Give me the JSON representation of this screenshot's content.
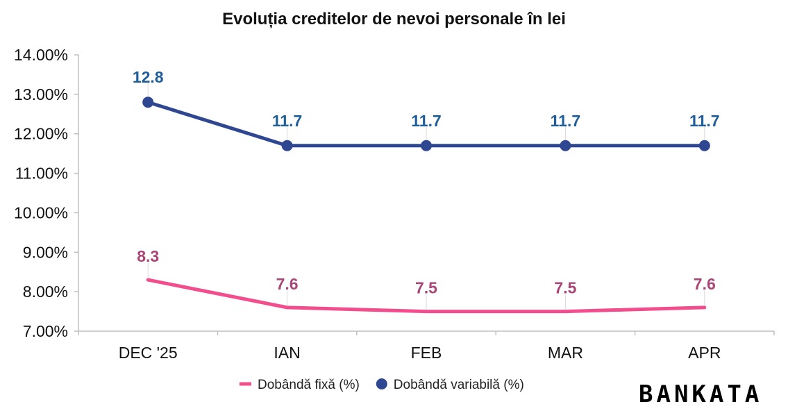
{
  "colors": {
    "fixed": "#f24d8c",
    "variable": "#2f4791",
    "fixed_label": "#a94577",
    "variable_label": "#1f5e99",
    "axis": "#bfbfbf",
    "leader": "#d9d9d9"
  },
  "brand": {
    "logo_text": "BANKATA"
  },
  "chart_data": {
    "type": "line",
    "title": "Evoluția creditelor de nevoi personale în lei",
    "xlabel": "",
    "ylabel": "",
    "categories": [
      "DEC '25",
      "IAN",
      "FEB",
      "MAR",
      "APR"
    ],
    "y_ticks": [
      "7.00%",
      "8.00%",
      "9.00%",
      "10.00%",
      "11.00%",
      "12.00%",
      "13.00%",
      "14.00%"
    ],
    "ylim": [
      7,
      14
    ],
    "grid": false,
    "legend_position": "bottom",
    "series": [
      {
        "name": "Dobândă fixă (%)",
        "values": [
          8.3,
          7.6,
          7.5,
          7.5,
          7.6
        ],
        "labels": [
          "8.3",
          "7.6",
          "7.5",
          "7.5",
          "7.6"
        ],
        "markers": false,
        "color_key": "fixed",
        "label_color_key": "fixed_label",
        "legend_marker": "line"
      },
      {
        "name": "Dobândă variabilă (%)",
        "values": [
          12.8,
          11.7,
          11.7,
          11.7,
          11.7
        ],
        "labels": [
          "12.8",
          "11.7",
          "11.7",
          "11.7",
          "11.7"
        ],
        "markers": true,
        "color_key": "variable",
        "label_color_key": "variable_label",
        "legend_marker": "circle"
      }
    ]
  }
}
